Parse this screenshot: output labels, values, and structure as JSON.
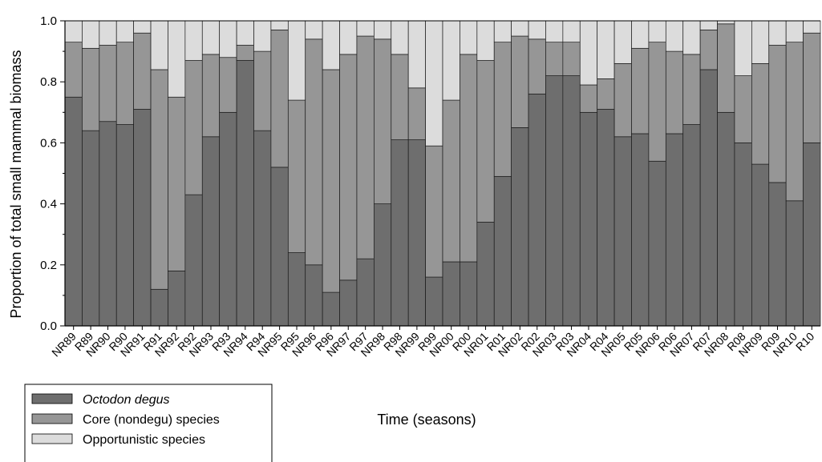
{
  "chart_data": {
    "type": "bar",
    "stacked": true,
    "title": "",
    "xlabel": "Time (seasons)",
    "ylabel": "Proportion of total small mammal biomass",
    "ylim": [
      0,
      1.0
    ],
    "yticks": [
      "0.0",
      "0.2",
      "0.4",
      "0.6",
      "0.8",
      "1.0"
    ],
    "categories": [
      "NR89",
      "R89",
      "NR90",
      "R90",
      "NR91",
      "R91",
      "NR92",
      "R92",
      "NR93",
      "R93",
      "NR94",
      "R94",
      "NR95",
      "R95",
      "NR96",
      "R96",
      "NR97",
      "R97",
      "NR98",
      "R98",
      "NR99",
      "R99",
      "NR00",
      "R00",
      "NR01",
      "R01",
      "NR02",
      "R02",
      "NR03",
      "R03",
      "NR04",
      "R04",
      "NR05",
      "R05",
      "NR06",
      "R06",
      "NR07",
      "R07",
      "NR08",
      "R08",
      "NR09",
      "R09",
      "NR10",
      "R10"
    ],
    "series": [
      {
        "name": "Octodon degus",
        "color": "#6e6e6e",
        "values": [
          0.75,
          0.64,
          0.67,
          0.66,
          0.71,
          0.12,
          0.18,
          0.43,
          0.62,
          0.7,
          0.87,
          0.64,
          0.52,
          0.24,
          0.2,
          0.11,
          0.15,
          0.22,
          0.4,
          0.61,
          0.61,
          0.16,
          0.21,
          0.21,
          0.34,
          0.49,
          0.65,
          0.76,
          0.82,
          0.82,
          0.7,
          0.71,
          0.62,
          0.63,
          0.54,
          0.63,
          0.66,
          0.84,
          0.7,
          0.6,
          0.53,
          0.47,
          0.41,
          0.6
        ]
      },
      {
        "name": "Core (nondegu) species",
        "color": "#969696",
        "values": [
          0.18,
          0.27,
          0.25,
          0.27,
          0.25,
          0.72,
          0.57,
          0.44,
          0.27,
          0.18,
          0.05,
          0.26,
          0.45,
          0.5,
          0.74,
          0.73,
          0.74,
          0.73,
          0.54,
          0.28,
          0.17,
          0.43,
          0.53,
          0.68,
          0.53,
          0.44,
          0.3,
          0.18,
          0.11,
          0.11,
          0.09,
          0.1,
          0.24,
          0.28,
          0.39,
          0.27,
          0.23,
          0.13,
          0.29,
          0.22,
          0.33,
          0.45,
          0.52,
          0.36
        ]
      },
      {
        "name": "Opportunistic species",
        "color": "#dcdcdc",
        "values": [
          0.07,
          0.09,
          0.08,
          0.07,
          0.04,
          0.16,
          0.25,
          0.13,
          0.11,
          0.12,
          0.08,
          0.1,
          0.03,
          0.26,
          0.06,
          0.16,
          0.11,
          0.05,
          0.06,
          0.11,
          0.22,
          0.41,
          0.26,
          0.11,
          0.13,
          0.07,
          0.05,
          0.06,
          0.07,
          0.07,
          0.21,
          0.19,
          0.14,
          0.09,
          0.07,
          0.1,
          0.11,
          0.03,
          0.01,
          0.18,
          0.14,
          0.08,
          0.07,
          0.04
        ]
      }
    ],
    "legend": {
      "position": "bottom-left",
      "entries": [
        "Octodon degus",
        "Core (nondegu) species",
        "Opportunistic species"
      ]
    },
    "grid": false
  }
}
